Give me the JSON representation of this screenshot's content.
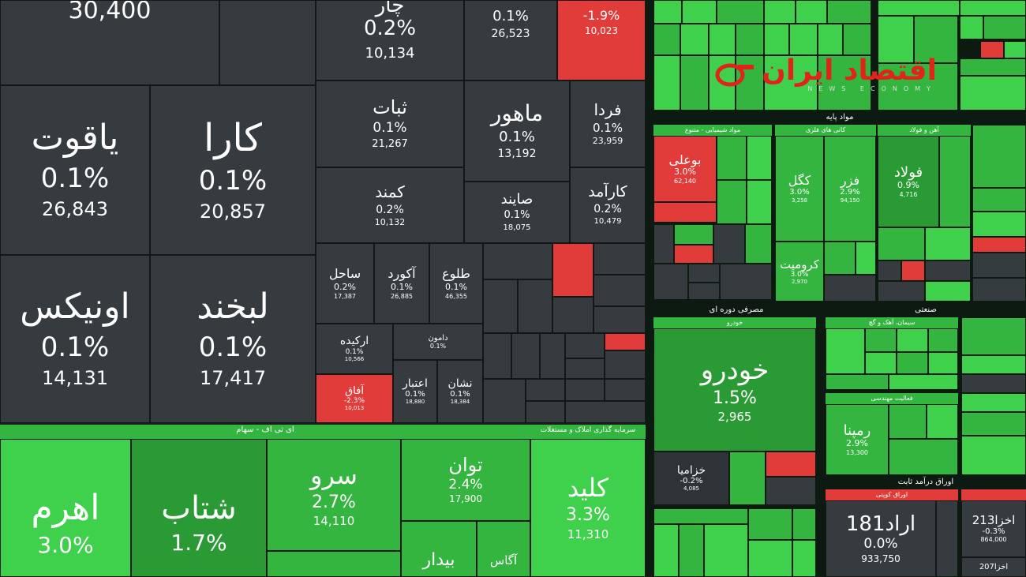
{
  "colors": {
    "dark": "#363b40",
    "green": "#3fd14c",
    "green_dark": "#2a9a35",
    "red": "#e23c3a",
    "bg": "#1a1d20"
  },
  "logo": {
    "text": "اقتصاد ایران",
    "sub": "NEWS ECONOMY"
  },
  "sectors": {
    "etf": "ای تی اف - سهام",
    "investment": "سرمایه گذاری املاک و مستغلات",
    "basic_metals": "مواد پایه",
    "chemicals": "مواد شیمیایی - متنوع",
    "minerals": "کانی های فلزی",
    "steel": "آهن و فولاد",
    "consumer": "مصرفی دوره ای",
    "automotive": "خودرو",
    "industrial": "صنعتی",
    "cement": "سیمان، آهک و گچ",
    "engineering": "فعالیت مهندسی",
    "bonds": "اوراق درآمد ثابت",
    "coupon": "اوراق کوپنی"
  },
  "tiles": {
    "t30400": {
      "value": "30,400"
    },
    "yaghut": {
      "name": "یاقوت",
      "pct": "0.1%",
      "value": "26,843"
    },
    "kara": {
      "name": "کارا",
      "pct": "0.1%",
      "value": "20,857"
    },
    "onyx": {
      "name": "اونیکس",
      "pct": "0.1%",
      "value": "14,131"
    },
    "labkhand": {
      "name": "لبخند",
      "pct": "0.1%",
      "value": "17,417"
    },
    "top1": {
      "name": "چار",
      "pct": "0.2%",
      "value": "10,134"
    },
    "top2": {
      "pct": "0.1%",
      "value": "26,523"
    },
    "top3": {
      "pct": "-1.9%",
      "value": "10,023"
    },
    "sabat": {
      "name": "ثبات",
      "pct": "0.1%",
      "value": "21,267"
    },
    "mahour": {
      "name": "ماهور",
      "pct": "0.1%",
      "value": "13,192"
    },
    "farda": {
      "name": "فردا",
      "pct": "0.1%",
      "value": "23,959"
    },
    "kamand": {
      "name": "کمند",
      "pct": "0.2%",
      "value": "10,132"
    },
    "sayand": {
      "name": "صایند",
      "pct": "0.1%",
      "value": "18,075"
    },
    "karamad": {
      "name": "کارآمد",
      "pct": "0.2%",
      "value": "10,479"
    },
    "sahel": {
      "name": "ساحل",
      "pct": "0.2%",
      "value": "17,387"
    },
    "akord": {
      "name": "آکورد",
      "pct": "0.1%",
      "value": "26,885"
    },
    "tolou": {
      "name": "طلوع",
      "pct": "0.1%",
      "value": "46,355"
    },
    "arkide": {
      "name": "ارکیده",
      "pct": "0.1%",
      "value": "10,566"
    },
    "damoun": {
      "name": "دامون",
      "pct": "0.1%"
    },
    "afagh": {
      "name": "آفاق",
      "pct": "-2.3%",
      "value": "10,013"
    },
    "etebar": {
      "name": "اعتبار",
      "pct": "0.1%",
      "value": "18,880"
    },
    "neshan": {
      "name": "نشان",
      "pct": "0.1%",
      "value": "18,384"
    },
    "ahrom": {
      "name": "اهرم",
      "pct": "3.0%"
    },
    "shetab": {
      "name": "شتاب",
      "pct": "1.7%"
    },
    "sarv": {
      "name": "سرو",
      "pct": "2.7%",
      "value": "14,110"
    },
    "tavan": {
      "name": "توان",
      "pct": "2.4%",
      "value": "17,900"
    },
    "kelid": {
      "name": "کلید",
      "pct": "3.3%",
      "value": "11,310"
    },
    "bidar": {
      "name": "بیدار"
    },
    "agas": {
      "name": "آگاس"
    },
    "bouali": {
      "name": "بوعلی",
      "pct": "3.0%",
      "value": "62,140"
    },
    "kegol": {
      "name": "کگل",
      "pct": "3.0%",
      "value": "3,258"
    },
    "fazar": {
      "name": "فزر",
      "pct": "2.9%",
      "value": "94,150"
    },
    "foulad": {
      "name": "فولاد",
      "pct": "0.9%",
      "value": "4,716"
    },
    "keromit": {
      "name": "کرومیت",
      "pct": "3.0%",
      "value": "2,970"
    },
    "khodro": {
      "name": "خودرو",
      "pct": "1.5%",
      "value": "2,965"
    },
    "khazamia": {
      "name": "خزامیا",
      "pct": "-0.2%",
      "value": "4,085"
    },
    "rampana": {
      "name": "رمپنا",
      "pct": "2.9%",
      "value": "13,300"
    },
    "arad181": {
      "name": "اراد181",
      "pct": "0.0%",
      "value": "933,750"
    },
    "akhza213": {
      "name": "اخزا213",
      "pct": "-0.3%",
      "value": "864,000"
    },
    "akhza207": {
      "name": "اخزا207"
    }
  }
}
